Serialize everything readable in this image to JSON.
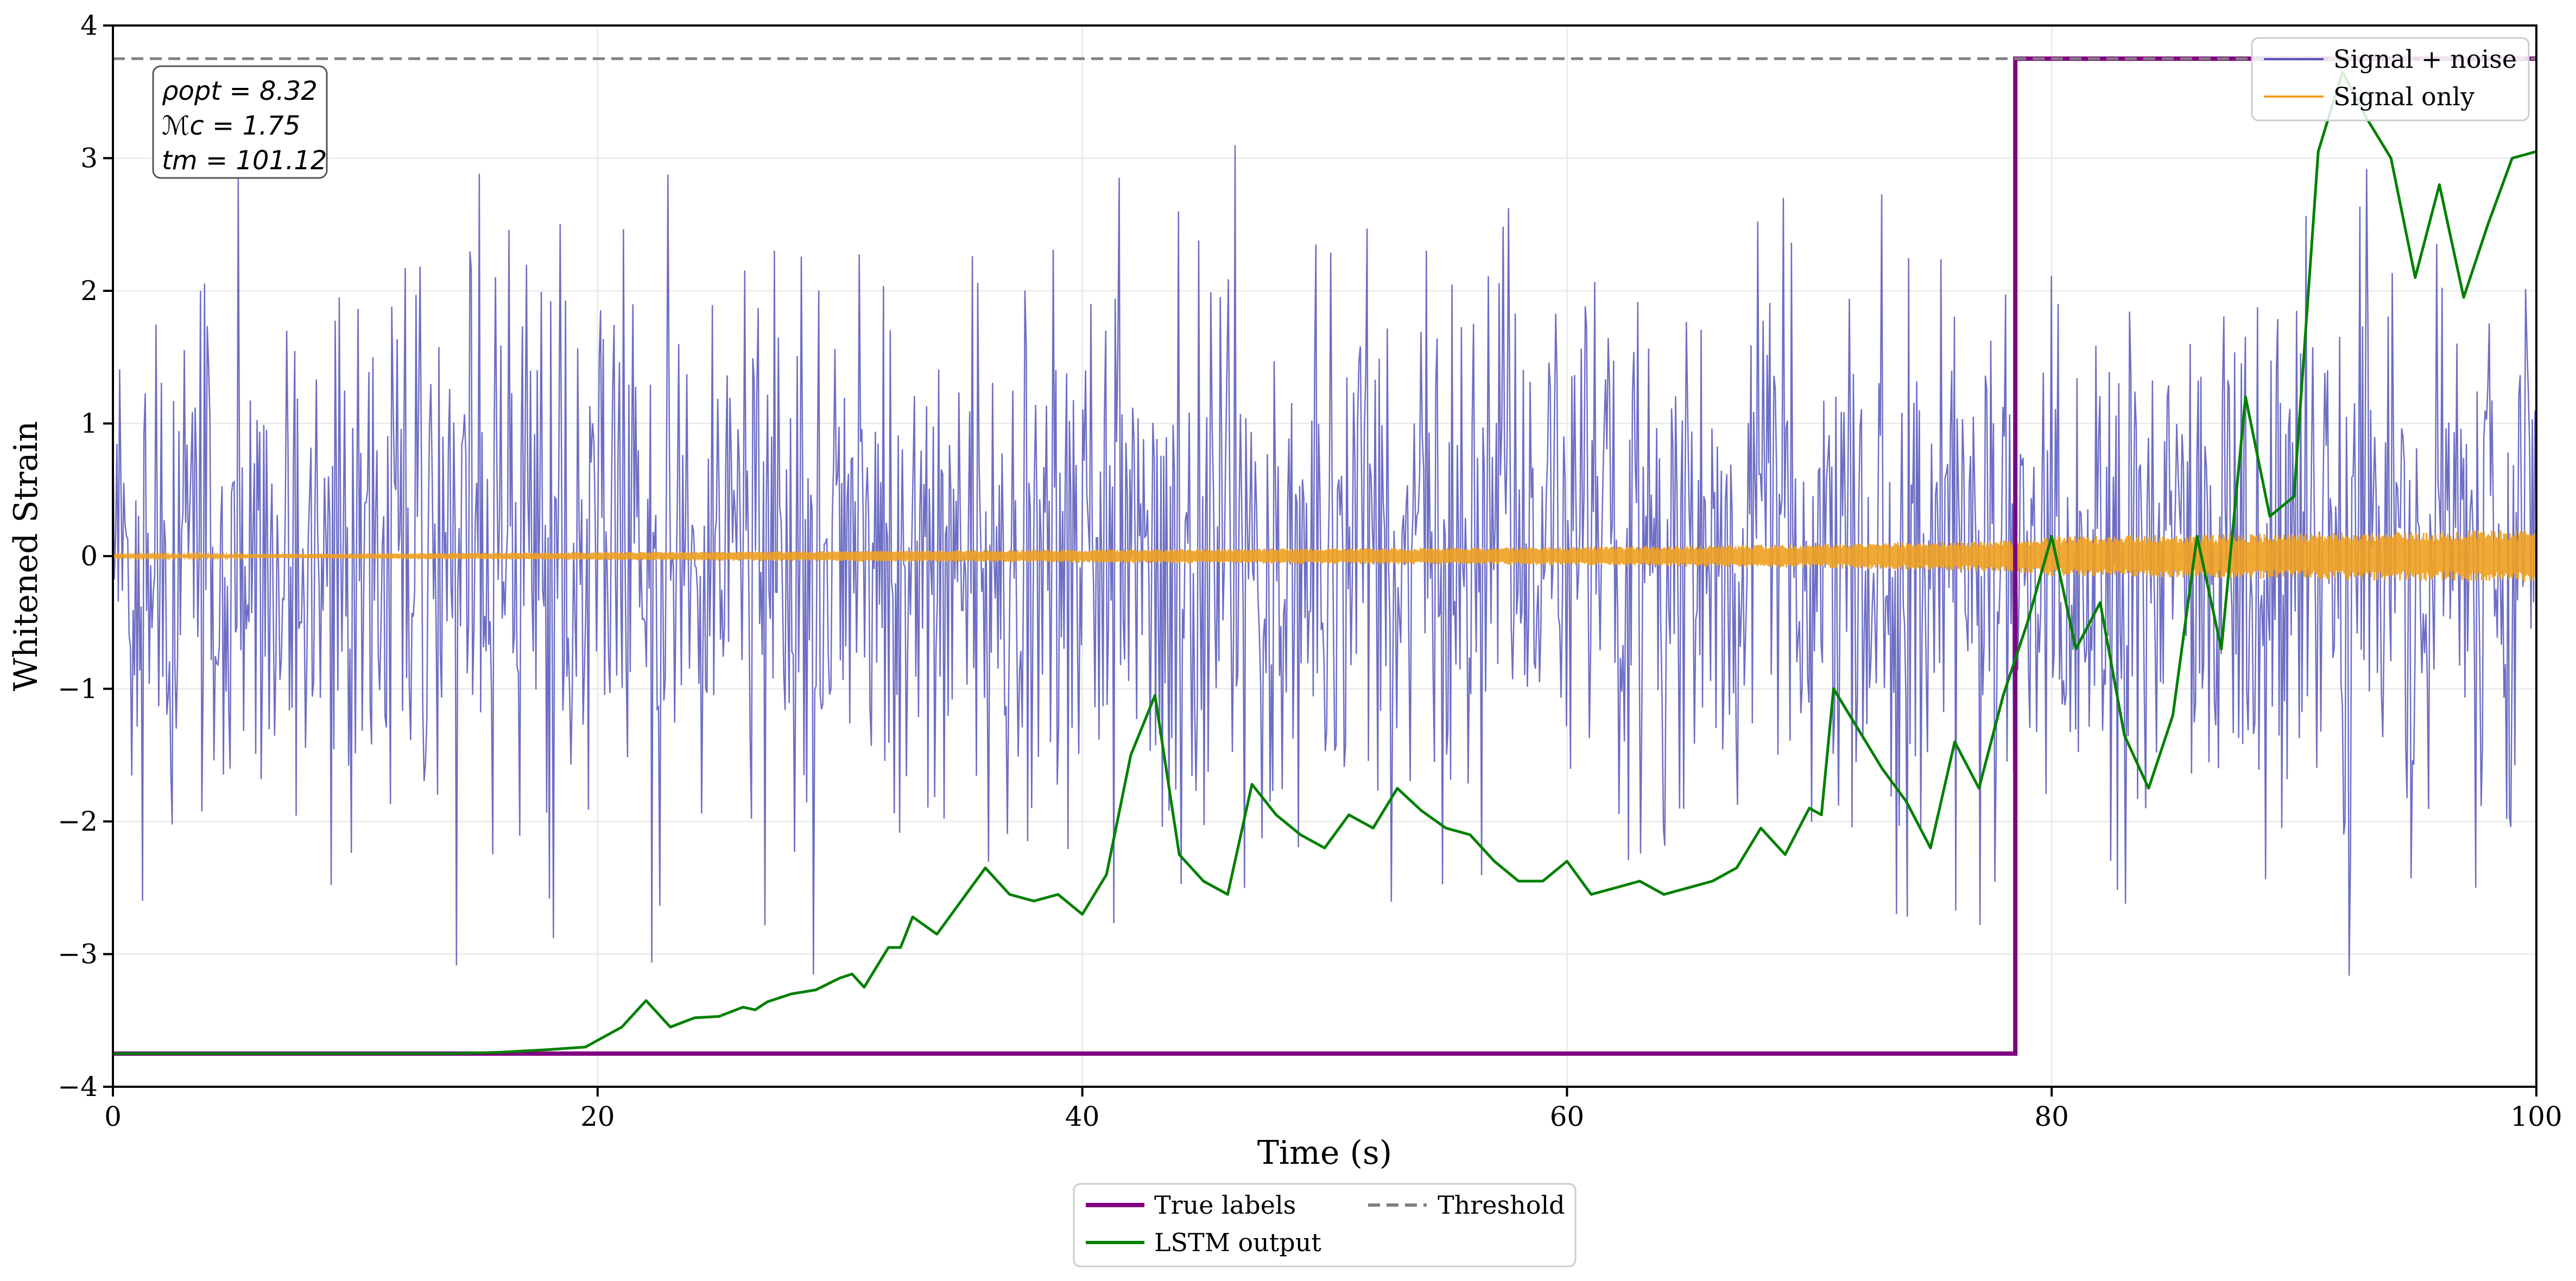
{
  "chart_data": {
    "type": "line",
    "title": "",
    "xlabel": "Time (s)",
    "ylabel": "Whitened Strain",
    "xlim": [
      0,
      100
    ],
    "ylim": [
      -4,
      4
    ],
    "xticks": [
      0,
      20,
      40,
      60,
      80,
      100
    ],
    "yticks": [
      -4,
      -3,
      -2,
      -1,
      0,
      1,
      2,
      3,
      4
    ],
    "xtick_labels": [
      "0",
      "20",
      "40",
      "60",
      "80",
      "100"
    ],
    "ytick_labels": [
      "−4",
      "−3",
      "−2",
      "−1",
      "0",
      "1",
      "2",
      "3",
      "4"
    ],
    "grid": true,
    "colors": {
      "signal_noise": "#5555bb",
      "signal_only": "#f0a020",
      "true_labels": "#800080",
      "lstm": "#008000",
      "threshold": "#808080"
    },
    "annotation": {
      "line1": "ρopt = 8.32",
      "line2": "ℳc = 1.75",
      "line3": "tm = 101.12"
    },
    "legend_upper": {
      "placement": "top-right",
      "entries": [
        "Signal + noise",
        "Signal only"
      ]
    },
    "legend_lower": {
      "placement": "below-axes",
      "entries": [
        "True labels",
        "LSTM output",
        "Threshold"
      ]
    },
    "series": [
      {
        "name": "Signal + noise",
        "style": "noise",
        "x_range": [
          0,
          100
        ],
        "samples": 1800,
        "amplitude_std": 1.05
      },
      {
        "name": "Signal only",
        "style": "chirp",
        "x_range": [
          0,
          100
        ],
        "envelope": {
          "x": [
            0,
            20,
            40,
            60,
            70,
            78,
            80,
            100
          ],
          "y": [
            0.01,
            0.03,
            0.05,
            0.07,
            0.09,
            0.12,
            0.15,
            0.2
          ]
        }
      },
      {
        "name": "True labels",
        "style": "step",
        "x": [
          0,
          78.5,
          78.5,
          100
        ],
        "y": [
          -3.75,
          -3.75,
          3.75,
          3.75
        ]
      },
      {
        "name": "LSTM output",
        "style": "line",
        "x": [
          0,
          5,
          10,
          14,
          16,
          18,
          19.5,
          20,
          20.5,
          21,
          22,
          23,
          24,
          25,
          26,
          26.5,
          27,
          28,
          29,
          30,
          30.5,
          31,
          32,
          32.5,
          33,
          34,
          35,
          36,
          37,
          38,
          39,
          40,
          41,
          42,
          43,
          44,
          45,
          46,
          47,
          48,
          49,
          50,
          51,
          52,
          53,
          54,
          55,
          56,
          57,
          58,
          59,
          60,
          61,
          62,
          63,
          64,
          65,
          66,
          67,
          68,
          69,
          70,
          70.5,
          71,
          72,
          73,
          74,
          75,
          76,
          77,
          78,
          79,
          80,
          81,
          82,
          83,
          84,
          85,
          86,
          87,
          88,
          89,
          90,
          91,
          92,
          93,
          94,
          95,
          96,
          97,
          98,
          99,
          100
        ],
        "y": [
          -3.75,
          -3.75,
          -3.75,
          -3.75,
          -3.74,
          -3.72,
          -3.7,
          -3.65,
          -3.6,
          -3.55,
          -3.35,
          -3.55,
          -3.48,
          -3.47,
          -3.4,
          -3.42,
          -3.36,
          -3.3,
          -3.27,
          -3.18,
          -3.15,
          -3.25,
          -2.95,
          -2.95,
          -2.72,
          -2.85,
          -2.6,
          -2.35,
          -2.55,
          -2.6,
          -2.55,
          -2.7,
          -2.4,
          -1.5,
          -1.05,
          -2.25,
          -2.45,
          -2.55,
          -1.72,
          -1.95,
          -2.1,
          -2.2,
          -1.95,
          -2.05,
          -1.75,
          -1.92,
          -2.05,
          -2.1,
          -2.3,
          -2.45,
          -2.45,
          -2.3,
          -2.55,
          -2.5,
          -2.45,
          -2.55,
          -2.5,
          -2.45,
          -2.35,
          -2.05,
          -2.25,
          -1.9,
          -1.95,
          -1.0,
          -1.3,
          -1.6,
          -1.85,
          -2.2,
          -1.4,
          -1.75,
          -1.05,
          -0.5,
          0.15,
          -0.7,
          -0.35,
          -1.35,
          -1.75,
          -1.2,
          0.15,
          -0.7,
          1.2,
          0.3,
          0.45,
          3.05,
          3.65,
          3.3,
          3.0,
          2.1,
          2.8,
          1.95,
          2.5,
          3.0,
          3.05
        ]
      },
      {
        "name": "Threshold",
        "style": "hline",
        "y": 3.75
      }
    ]
  }
}
